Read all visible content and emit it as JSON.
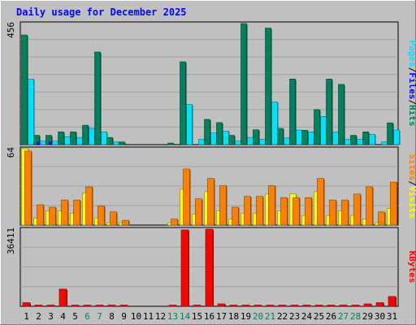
{
  "chart_data": {
    "type": "bar",
    "title": "Daily usage for December 2025",
    "x": [
      "1",
      "2",
      "3",
      "4",
      "5",
      "6",
      "7",
      "8",
      "9",
      "10",
      "11",
      "12",
      "13",
      "14",
      "15",
      "16",
      "17",
      "18",
      "19",
      "20",
      "21",
      "22",
      "23",
      "24",
      "25",
      "26",
      "27",
      "28",
      "29",
      "30",
      "31"
    ],
    "weekend_days": [
      "6",
      "7",
      "13",
      "14",
      "20",
      "21",
      "27",
      "28"
    ],
    "grid": true,
    "colors": {
      "background": "#c0c0c0",
      "pages": "#00e0ff",
      "files": "#0000ff",
      "hits": "#00805c",
      "visits": "#ffff00",
      "sites": "#ff8000",
      "kbytes": "#ff0000",
      "weekend_label": "#00805c",
      "weekday_label": "#000000"
    },
    "panels": [
      {
        "id": "hits_files_pages",
        "ymax_label": "456",
        "ylim": [
          0,
          456
        ],
        "label_parts": [
          {
            "text": "Pages",
            "color": "#00e0ff"
          },
          {
            "text": "/",
            "color": "#000000"
          },
          {
            "text": "Files",
            "color": "#0000ff"
          },
          {
            "text": "/",
            "color": "#000000"
          },
          {
            "text": "Hits",
            "color": "#00805c"
          }
        ],
        "series": [
          {
            "name": "Hits",
            "color": "#00805c",
            "values": [
              413,
              35,
              35,
              48,
              48,
              73,
              349,
              27,
              10,
              0,
              0,
              0,
              6,
              312,
              0,
              95,
              83,
              35,
              456,
              56,
              439,
              61,
              247,
              54,
              132,
              247,
              227,
              35,
              48,
              0,
              82
            ]
          },
          {
            "name": "Files",
            "color": "#0000ff",
            "values": [
              0,
              10,
              10,
              0,
              0,
              0,
              0,
              0,
              0,
              0,
              0,
              0,
              0,
              0,
              0,
              0,
              0,
              0,
              0,
              0,
              0,
              0,
              0,
              0,
              0,
              0,
              0,
              0,
              0,
              0,
              0
            ]
          },
          {
            "name": "Pages",
            "color": "#00e0ff",
            "values": [
              247,
              13,
              13,
              30,
              27,
              61,
              48,
              10,
              0,
              0,
              0,
              0,
              0,
              151,
              20,
              44,
              51,
              13,
              27,
              20,
              161,
              25,
              55,
              48,
              106,
              48,
              20,
              20,
              39,
              10,
              55
            ]
          }
        ]
      },
      {
        "id": "visits_sites",
        "ymax_label": "64",
        "ylim": [
          0,
          64
        ],
        "label_parts": [
          {
            "text": "Sites",
            "color": "#ff8000"
          },
          {
            "text": "/",
            "color": "#000000"
          },
          {
            "text": "Visits",
            "color": "#ffff00"
          }
        ],
        "series": [
          {
            "name": "Visits",
            "color": "#ffff00",
            "values": [
              64,
              6,
              12,
              12,
              10,
              27,
              6,
              2,
              2,
              0,
              0,
              0,
              2,
              30,
              9,
              28,
              12,
              5,
              10,
              10,
              26,
              12,
              26,
              8,
              28,
              8,
              12,
              8,
              5,
              2,
              14
            ]
          },
          {
            "name": "Sites",
            "color": "#ff8000",
            "values": [
              62,
              17,
              15,
              21,
              21,
              32,
              16,
              11,
              4,
              0,
              0,
              0,
              5,
              47,
              22,
              39,
              33,
              15,
              24,
              24,
              33,
              23,
              23,
              23,
              39,
              21,
              21,
              26,
              32,
              11,
              36
            ]
          }
        ]
      },
      {
        "id": "kbytes",
        "ymax_label": "36411",
        "ylim": [
          0,
          36411
        ],
        "label_parts": [
          {
            "text": "KBytes",
            "color": "#ff0000"
          }
        ],
        "series": [
          {
            "name": "KBytes",
            "color": "#ff0000",
            "values": [
              1734,
              575,
              575,
              8107,
              575,
              575,
              575,
              575,
              575,
              0,
              0,
              0,
              575,
              36050,
              575,
              36411,
              1157,
              575,
              575,
              575,
              575,
              575,
              575,
              575,
              575,
              575,
              575,
              575,
              1157,
              1734,
              4628
            ]
          }
        ]
      }
    ]
  }
}
